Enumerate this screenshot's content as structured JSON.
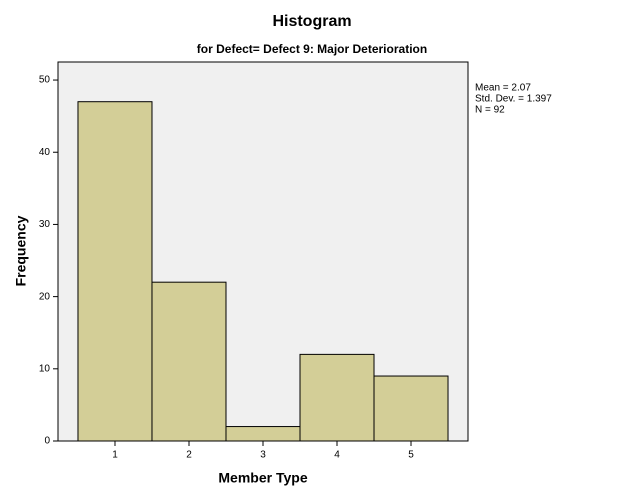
{
  "chart_data": {
    "type": "histogram",
    "title": "Histogram",
    "subtitle": "for Defect= Defect 9: Major Deterioration",
    "x_label": "Member Type",
    "y_label": "Frequency",
    "bins": [
      0.5,
      1.5,
      2.5,
      3.5,
      4.5,
      5.5
    ],
    "counts": [
      47,
      22,
      2,
      12,
      9
    ],
    "color": "#d3ce97",
    "background": "#f0f0f0",
    "xlim": [
      0.23,
      5.77
    ],
    "xticks": [
      1,
      2,
      3,
      4,
      5
    ],
    "ylim": [
      0,
      52.5
    ],
    "yticks": [
      0,
      10,
      20,
      30,
      40,
      50
    ],
    "annotations": [
      "Mean = 2.07",
      "Std. Dev. = 1.397",
      "N = 92"
    ]
  }
}
